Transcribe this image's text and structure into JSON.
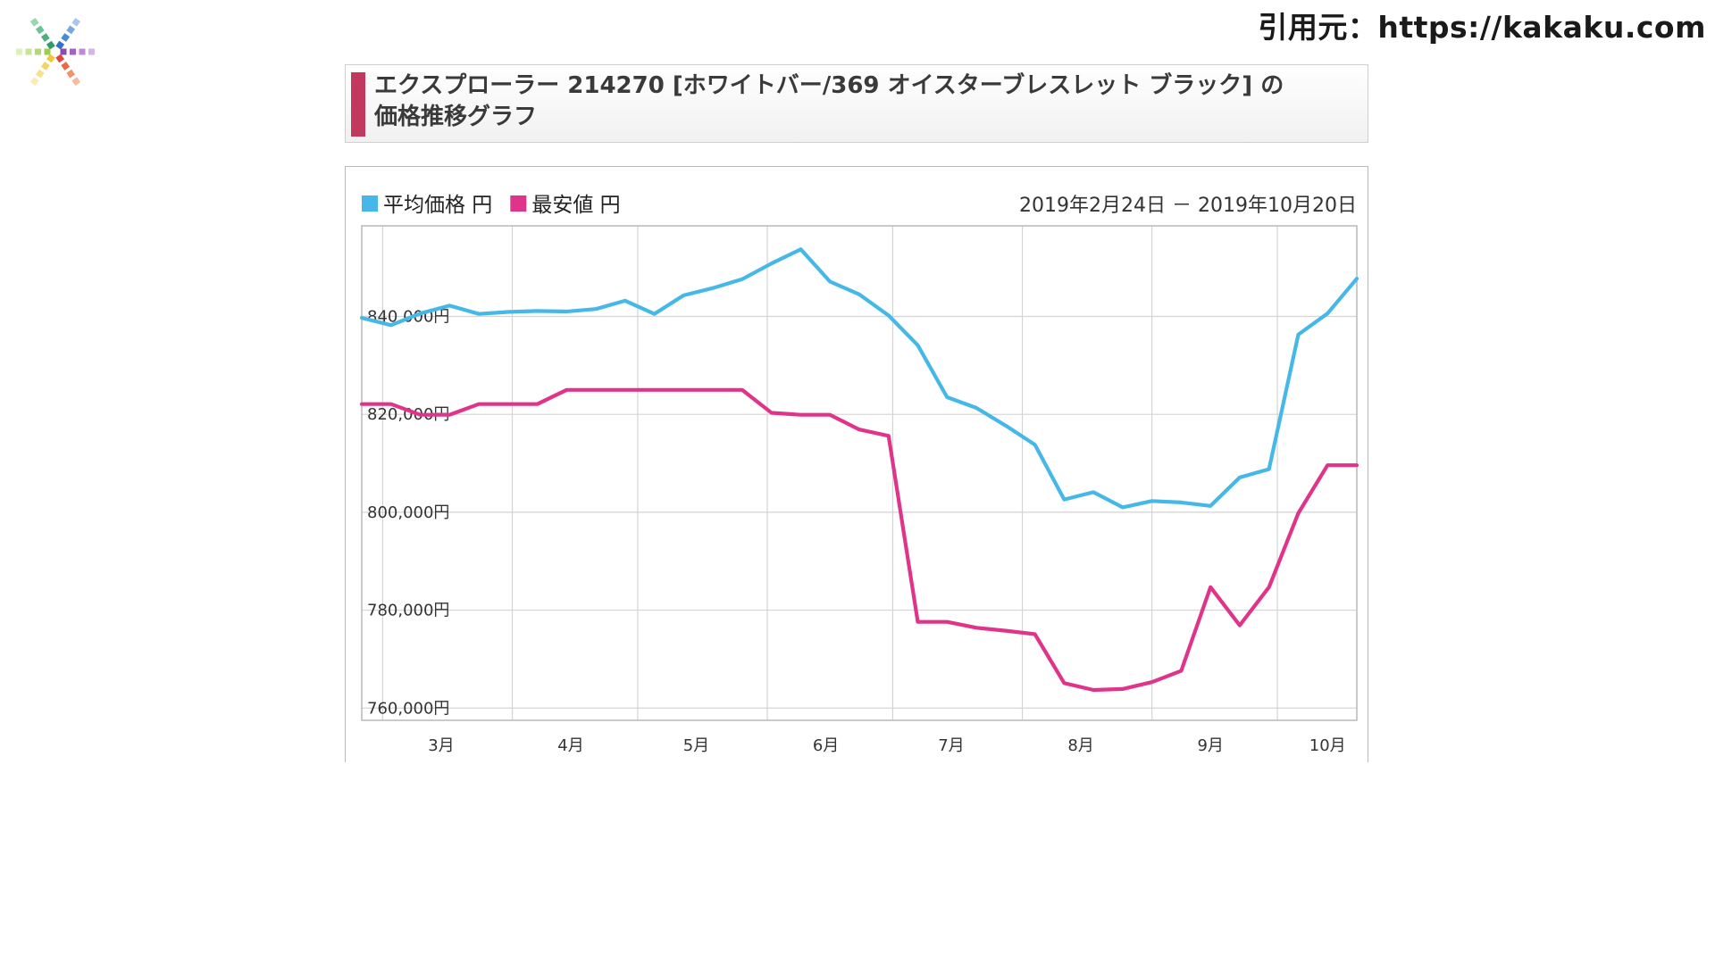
{
  "source_label": "引用元：https://kakaku.com",
  "title": {
    "line1": "エクスプローラー 214270 [ホワイトバー/369 オイスターブレスレット ブラック] の",
    "line2": "価格推移グラフ"
  },
  "colors": {
    "title_accent": "#c2385f",
    "average": "#45b8e8",
    "lowest": "#e0348a",
    "grid": "#d4d4d4"
  },
  "chart_data": {
    "type": "line",
    "date_range": "2019年2月24日 － 2019年10月20日",
    "x_labels": [
      "3月",
      "4月",
      "5月",
      "6月",
      "7月",
      "8月",
      "9月",
      "10月"
    ],
    "y_ticks": [
      "840,000円",
      "820,000円",
      "800,000円",
      "780,000円",
      "760,000円"
    ],
    "ylim": [
      757500,
      858500
    ],
    "grid": true,
    "legend_position": "top-left",
    "series": [
      {
        "name": "平均価格 円",
        "color": "#45b8e8",
        "dates": [
          "2019-02-24",
          "2019-03-03",
          "2019-03-10",
          "2019-03-17",
          "2019-03-24",
          "2019-03-31",
          "2019-04-07",
          "2019-04-14",
          "2019-04-21",
          "2019-04-28",
          "2019-05-05",
          "2019-05-12",
          "2019-05-19",
          "2019-05-26",
          "2019-06-02",
          "2019-06-09",
          "2019-06-16",
          "2019-06-23",
          "2019-06-30",
          "2019-07-07",
          "2019-07-14",
          "2019-07-21",
          "2019-07-28",
          "2019-08-04",
          "2019-08-11",
          "2019-08-18",
          "2019-08-25",
          "2019-09-01",
          "2019-09-08",
          "2019-09-15",
          "2019-09-22",
          "2019-09-29",
          "2019-10-06",
          "2019-10-13",
          "2019-10-20"
        ],
        "values": [
          839700,
          838200,
          840600,
          842200,
          840500,
          840900,
          841100,
          841000,
          841500,
          843200,
          840500,
          844300,
          845800,
          847600,
          850800,
          853700,
          847100,
          844500,
          840200,
          834100,
          823500,
          821300,
          817700,
          813800,
          802600,
          804100,
          801000,
          802300,
          802000,
          801300,
          807100,
          808800,
          836300,
          840600,
          847700
        ]
      },
      {
        "name": "最安値 円",
        "color": "#e0348a",
        "dates": [
          "2019-02-24",
          "2019-03-03",
          "2019-03-10",
          "2019-03-17",
          "2019-03-24",
          "2019-03-31",
          "2019-04-07",
          "2019-04-14",
          "2019-04-21",
          "2019-04-28",
          "2019-05-05",
          "2019-05-12",
          "2019-05-19",
          "2019-05-26",
          "2019-06-02",
          "2019-06-09",
          "2019-06-16",
          "2019-06-23",
          "2019-06-30",
          "2019-07-07",
          "2019-07-14",
          "2019-07-21",
          "2019-07-28",
          "2019-08-04",
          "2019-08-11",
          "2019-08-18",
          "2019-08-25",
          "2019-09-01",
          "2019-09-08",
          "2019-09-15",
          "2019-09-22",
          "2019-09-29",
          "2019-10-06",
          "2019-10-13",
          "2019-10-20"
        ],
        "values": [
          822100,
          822100,
          819900,
          819900,
          822100,
          822100,
          822100,
          825000,
          825000,
          825000,
          825000,
          825000,
          825000,
          825000,
          820300,
          819900,
          819900,
          816900,
          815600,
          777600,
          777600,
          776400,
          775800,
          775100,
          765100,
          763700,
          763900,
          765300,
          767600,
          784700,
          776900,
          784700,
          799800,
          809600,
          809600
        ]
      }
    ]
  }
}
